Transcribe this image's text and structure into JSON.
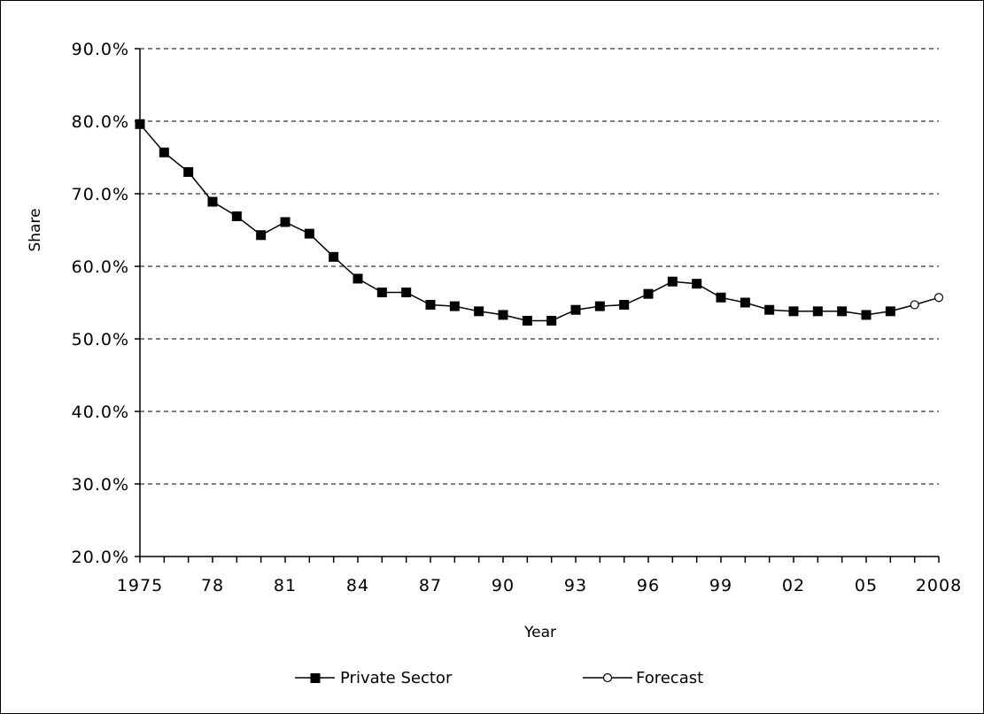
{
  "chart_data": {
    "type": "line",
    "title": "",
    "xlabel": "Year",
    "ylabel": "Share",
    "ylim": [
      20,
      90
    ],
    "y_ticks": [
      20,
      30,
      40,
      50,
      60,
      70,
      80,
      90
    ],
    "y_tick_labels": [
      "20.0%",
      "30.0%",
      "40.0%",
      "50.0%",
      "60.0%",
      "70.0%",
      "80.0%",
      "90.0%"
    ],
    "xlim": [
      1975,
      2008
    ],
    "x_ticks": [
      1975,
      1978,
      1981,
      1984,
      1987,
      1990,
      1993,
      1996,
      1999,
      2002,
      2005,
      2008
    ],
    "x_tick_labels": [
      "1975",
      "78",
      "81",
      "84",
      "87",
      "90",
      "93",
      "96",
      "99",
      "02",
      "05",
      "2008"
    ],
    "grid": "horizontal dashed",
    "legend_position": "bottom",
    "series": [
      {
        "name": "Private Sector",
        "marker": "filled-square",
        "color": "#000000",
        "x": [
          1975,
          1976,
          1977,
          1978,
          1979,
          1980,
          1981,
          1982,
          1983,
          1984,
          1985,
          1986,
          1987,
          1988,
          1989,
          1990,
          1991,
          1992,
          1993,
          1994,
          1995,
          1996,
          1997,
          1998,
          1999,
          2000,
          2001,
          2002,
          2003,
          2004,
          2005,
          2006
        ],
        "values": [
          79.6,
          75.7,
          73.0,
          68.9,
          66.9,
          64.3,
          66.1,
          64.5,
          61.3,
          58.3,
          56.4,
          56.4,
          54.7,
          54.5,
          53.8,
          53.3,
          52.5,
          52.5,
          54.0,
          54.5,
          54.7,
          56.2,
          57.9,
          57.6,
          55.7,
          55.0,
          54.0,
          53.8,
          53.8,
          53.8,
          53.3,
          53.8
        ]
      },
      {
        "name": "Forecast",
        "marker": "open-circle",
        "color": "#000000",
        "x": [
          2006,
          2007,
          2008
        ],
        "values": [
          53.8,
          54.7,
          55.7
        ]
      }
    ]
  }
}
